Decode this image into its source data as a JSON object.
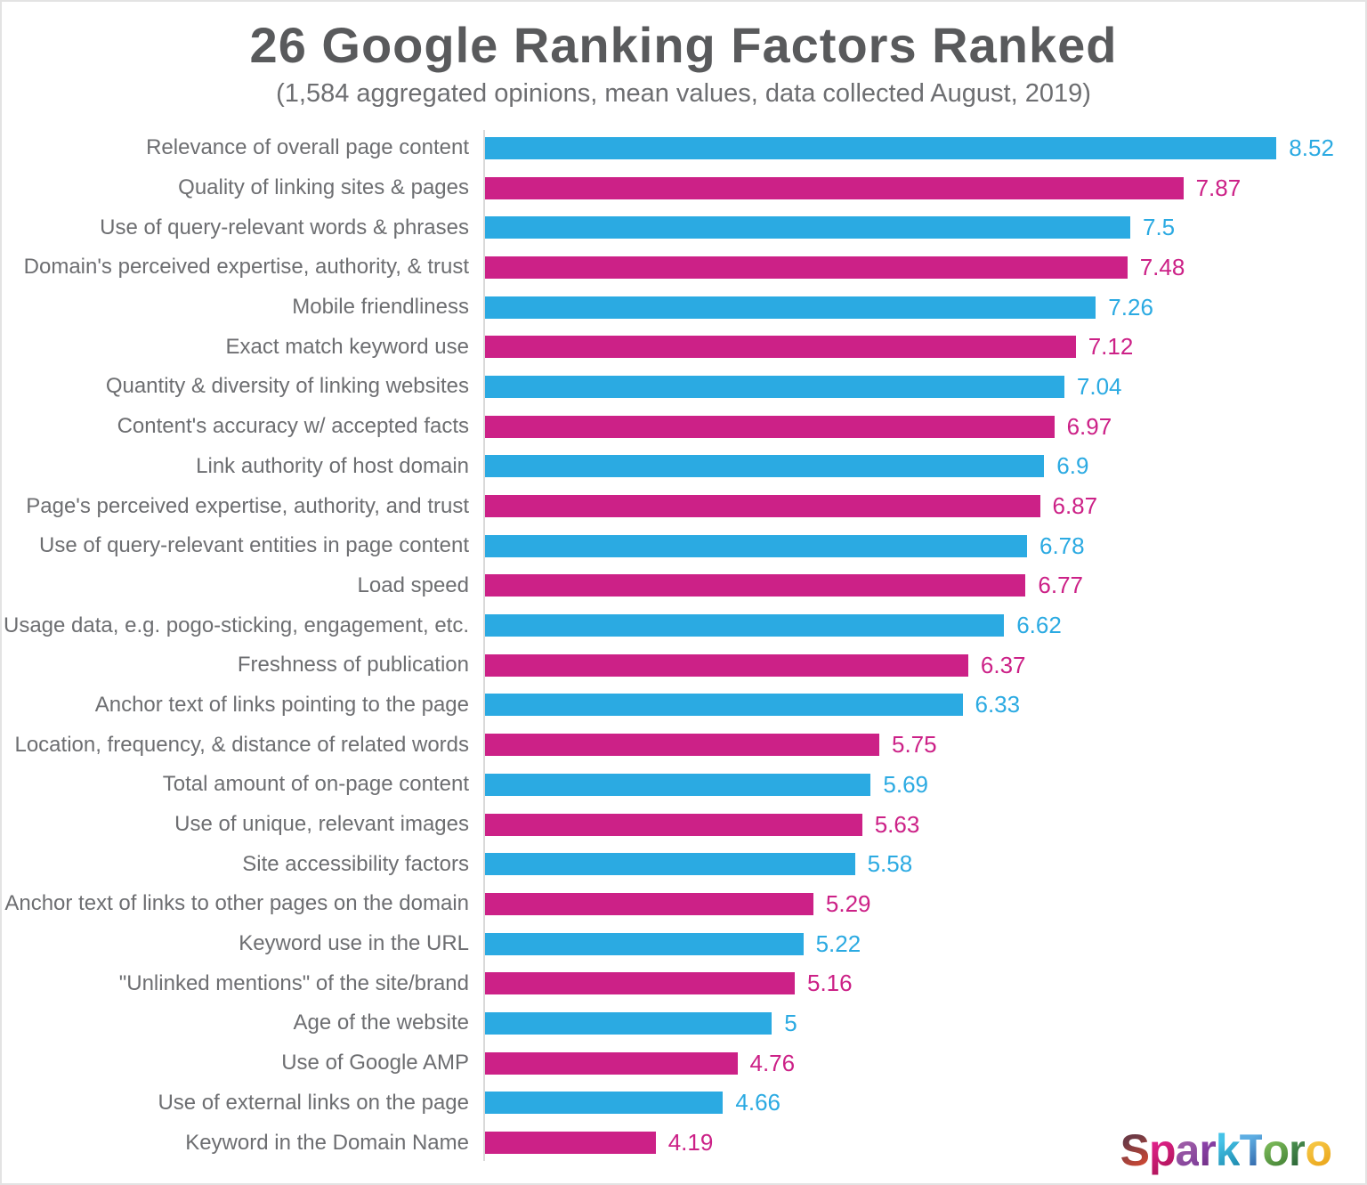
{
  "title": "26 Google Ranking Factors Ranked",
  "subtitle": "(1,584 aggregated opinions, mean values, data collected August, 2019)",
  "colors": {
    "blue": "#2baae2",
    "magenta": "#cc2187",
    "title_text": "#595a5c",
    "label_text": "#6d6e71",
    "axis_line": "#d9d9d9"
  },
  "chart_data": {
    "type": "bar",
    "orientation": "horizontal",
    "title": "26 Google Ranking Factors Ranked",
    "subtitle": "(1,584 aggregated opinions, mean values, data collected August, 2019)",
    "xlabel": "",
    "ylabel": "",
    "xlim": [
      3,
      9.17
    ],
    "grid": false,
    "value_labels_shown": true,
    "bar_colors_alternate": [
      "#2baae2",
      "#cc2187"
    ],
    "categories": [
      "Relevance of overall page content",
      "Quality of linking sites & pages",
      "Use of query-relevant words & phrases",
      "Domain's perceived expertise, authority, & trust",
      "Mobile friendliness",
      "Exact match keyword use",
      "Quantity & diversity of linking websites",
      "Content's accuracy w/ accepted facts",
      "Link authority of host domain",
      "Page's perceived expertise, authority, and trust",
      "Use of query-relevant entities in page content",
      "Load speed",
      "Usage data, e.g. pogo-sticking, engagement, etc.",
      "Freshness of publication",
      "Anchor text of links pointing to the page",
      "Location, frequency, & distance of related words",
      "Total amount of on-page content",
      "Use of unique, relevant images",
      "Site accessibility factors",
      "Anchor text of links to other pages on the domain",
      "Keyword use in the URL",
      "\"Unlinked mentions\" of the site/brand",
      "Age of the website",
      "Use of Google AMP",
      "Use of external links on the page",
      "Keyword in the Domain Name"
    ],
    "values": [
      8.52,
      7.87,
      7.5,
      7.48,
      7.26,
      7.12,
      7.04,
      6.97,
      6.9,
      6.87,
      6.78,
      6.77,
      6.62,
      6.37,
      6.33,
      5.75,
      5.69,
      5.63,
      5.58,
      5.29,
      5.22,
      5.16,
      5,
      4.76,
      4.66,
      4.19
    ],
    "value_display_labels": [
      "8.52",
      "7.87",
      "7.5",
      "7.48",
      "7.26",
      "7.12",
      "7.04",
      "6.97",
      "6.9",
      "6.87",
      "6.78",
      "6.77",
      "6.62",
      "6.37",
      "6.33",
      "5.75",
      "5.69",
      "5.63",
      "5.58",
      "5.29",
      "5.22",
      "5.16",
      "5",
      "4.76",
      "4.66",
      "4.19"
    ]
  },
  "logo": {
    "text": "SparkToro",
    "letters": [
      {
        "ch": "S",
        "c1": "#6e3a45",
        "c2": "#e04a2f"
      },
      {
        "ch": "p",
        "c1": "#e0218a",
        "c2": "#ad1457"
      },
      {
        "ch": "a",
        "c1": "#a05fa8",
        "c2": "#7d3c98"
      },
      {
        "ch": "r",
        "c1": "#8e44ad",
        "c2": "#6c2d7e"
      },
      {
        "ch": "k",
        "c1": "#45c3e8",
        "c2": "#1a85a8"
      },
      {
        "ch": "T",
        "c1": "#5dade2",
        "c2": "#2e5fa3"
      },
      {
        "ch": "o",
        "c1": "#7dbb5a",
        "c2": "#3e7d32"
      },
      {
        "ch": "r",
        "c1": "#4a8f4e",
        "c2": "#275e33"
      },
      {
        "ch": "o",
        "c1": "#f7c948",
        "c2": "#e8a013"
      }
    ]
  }
}
